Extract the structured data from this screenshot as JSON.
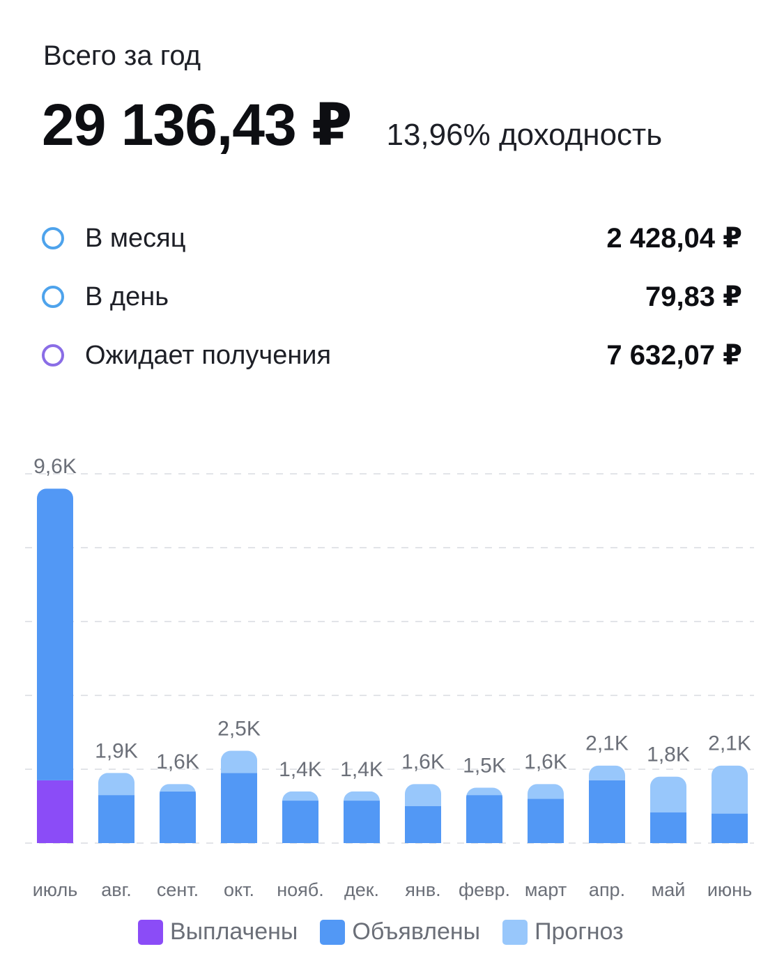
{
  "header": {
    "label": "Всего за год",
    "total": "29 136,43 ₽",
    "yield": "13,96% доходность"
  },
  "stats": [
    {
      "label": "В месяц",
      "value": "2 428,04 ₽",
      "icon": "ring-blue-icon",
      "color": "#4ea3ec"
    },
    {
      "label": "В день",
      "value": "79,83 ₽",
      "icon": "ring-blue-icon",
      "color": "#4ea3ec"
    },
    {
      "label": "Ожидает получения",
      "value": "7 632,07 ₽",
      "icon": "ring-purple-icon",
      "color": "#8a6de6"
    }
  ],
  "colors": {
    "paid": "#8b4cf7",
    "announced": "#5298f5",
    "forecast": "#98c7fb",
    "grid": "#e2e4e8",
    "label": "#6b6f78"
  },
  "chart_data": {
    "type": "bar",
    "stacked": true,
    "categories": [
      "июль",
      "авг.",
      "сент.",
      "окт.",
      "нояб.",
      "дек.",
      "янв.",
      "февр.",
      "март",
      "апр.",
      "май",
      "июнь"
    ],
    "totals_labels": [
      "9,6K",
      "1,9K",
      "1,6K",
      "2,5K",
      "1,4K",
      "1,4K",
      "1,6K",
      "1,5K",
      "1,6K",
      "2,1K",
      "1,8K",
      "2,1K"
    ],
    "series": [
      {
        "name": "Выплачены",
        "values": [
          1700,
          0,
          0,
          0,
          0,
          0,
          0,
          0,
          0,
          0,
          0,
          0
        ]
      },
      {
        "name": "Объявлены",
        "values": [
          7900,
          1300,
          1400,
          1900,
          1150,
          1150,
          1000,
          1300,
          1200,
          1700,
          830,
          800
        ]
      },
      {
        "name": "Прогноз",
        "values": [
          0,
          600,
          200,
          600,
          250,
          250,
          600,
          200,
          400,
          400,
          970,
          1300
        ]
      }
    ],
    "ylim": [
      0,
      10000
    ],
    "grid": true,
    "legend": "bottom"
  }
}
